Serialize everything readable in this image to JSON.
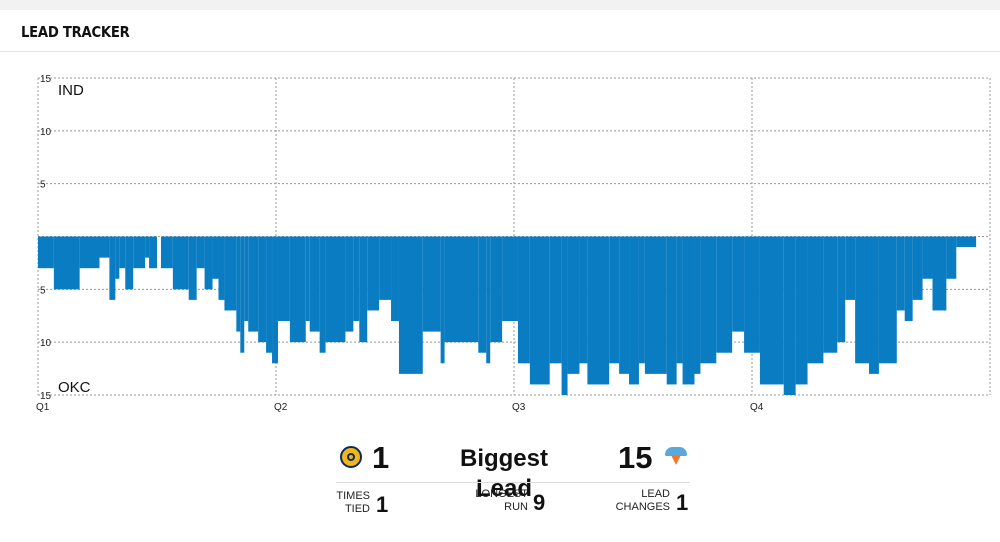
{
  "header": {
    "title": "LEAD TRACKER"
  },
  "chart_data": {
    "type": "area",
    "y_axis": {
      "range": [
        -15,
        15
      ],
      "ticks": [
        15,
        10,
        5,
        -5,
        -10,
        -15
      ],
      "tick_labels": [
        "15",
        "10",
        "5",
        "5",
        "10",
        "15"
      ]
    },
    "team_labels": {
      "top": "IND",
      "bottom": "OKC"
    },
    "x_axis": {
      "range": [
        0,
        48
      ],
      "ticks": [
        0,
        12,
        24,
        36
      ],
      "tick_labels": [
        "Q1",
        "Q2",
        "Q3",
        "Q4"
      ],
      "unit": "game minutes"
    },
    "grid": true,
    "color": "#0a7cc2",
    "series": [
      {
        "x": [
          0.8,
          2.1,
          3.1,
          3.6,
          3.9,
          4.1,
          4.4,
          4.8,
          5.4,
          5.6,
          6.0,
          6.2,
          6.8,
          7.6,
          8.0,
          8.4,
          8.8,
          9.1,
          9.4,
          10.0,
          10.2,
          10.4,
          10.6,
          11.1,
          11.5,
          11.8,
          12.1,
          12.7,
          13.5,
          13.7,
          14.2,
          14.5,
          15.5,
          15.9,
          16.2,
          16.6,
          17.2,
          17.8,
          18.2,
          19.4,
          20.3,
          20.5,
          22.2,
          22.6,
          22.8,
          23.4,
          24.2,
          24.8,
          25.8,
          26.4,
          26.7,
          27.3,
          27.7,
          28.8,
          29.3,
          29.8,
          30.3,
          30.6,
          31.7,
          32.2,
          32.5,
          33.1,
          33.4,
          34.2,
          35.0,
          35.6,
          36.4,
          37.6,
          38.2,
          38.8,
          39.6,
          40.3,
          40.7,
          41.2,
          41.9,
          42.4,
          43.3,
          43.7,
          44.1,
          44.6,
          45.1,
          45.8,
          46.3,
          47.3,
          48.0
        ],
        "margin": [
          -3,
          -5,
          -3,
          -2,
          -6,
          -4,
          -3,
          -5,
          -3,
          -2,
          -3,
          0,
          -3,
          -5,
          -6,
          -3,
          -5,
          -4,
          -6,
          -7,
          -9,
          -11,
          -8,
          -9,
          -10,
          -11,
          -12,
          -8,
          -10,
          -8,
          -9,
          -11,
          -10,
          -9,
          -8,
          -10,
          -7,
          -6,
          -8,
          -13,
          -9,
          -12,
          -10,
          -11,
          -12,
          -10,
          -8,
          -12,
          -14,
          -12,
          -15,
          -13,
          -12,
          -14,
          -12,
          -13,
          -14,
          -12,
          -13,
          -14,
          -12,
          -14,
          -13,
          -12,
          -11,
          -9,
          -11,
          -14,
          -15,
          -14,
          -12,
          -11,
          -10,
          -6,
          -12,
          -13,
          -12,
          -7,
          -8,
          -6,
          -4,
          -7,
          -4,
          -1,
          0
        ]
      }
    ]
  },
  "stats": {
    "ind_biggest_lead": "1",
    "biggest_lead_label": "Biggest Lead",
    "okc_biggest_lead": "15",
    "times_tied_label_1": "TIMES",
    "times_tied_label_2": "TIED",
    "times_tied_value": "1",
    "longest_run_label_1": "LONGEST",
    "longest_run_label_2": "RUN",
    "longest_run_value": "9",
    "lead_changes_label_1": "LEAD",
    "lead_changes_label_2": "CHANGES",
    "lead_changes_value": "1"
  }
}
